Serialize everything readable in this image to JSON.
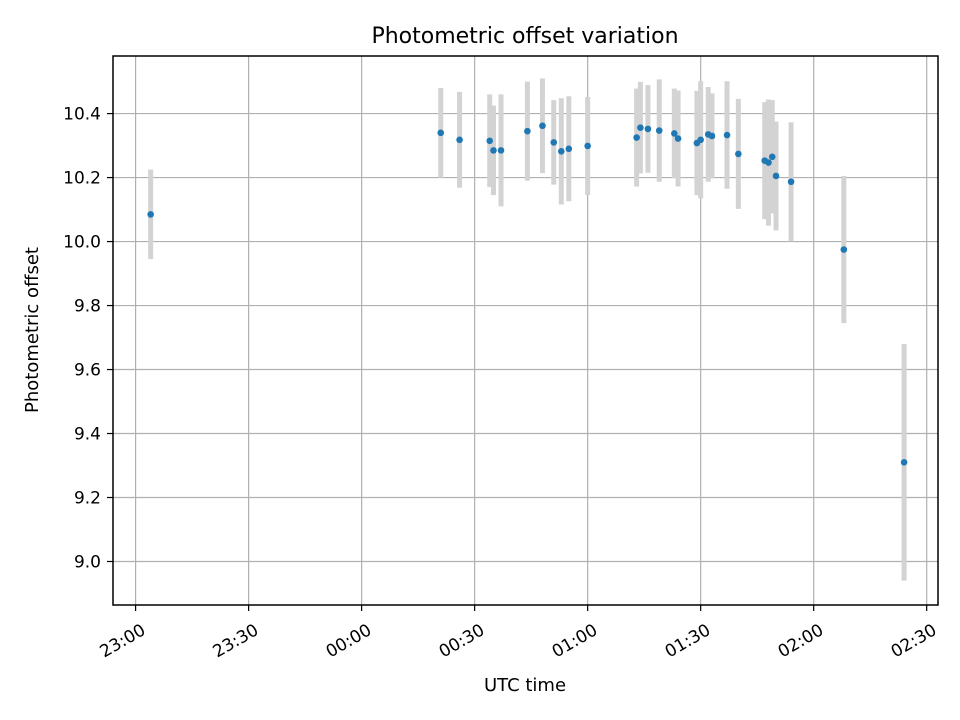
{
  "chart_data": {
    "type": "scatter",
    "title": "Photometric offset variation",
    "xlabel": "UTC time",
    "ylabel": "Photometric offset",
    "x_tick_labels": [
      "23:00",
      "23:30",
      "00:00",
      "00:30",
      "01:00",
      "01:30",
      "02:00",
      "02:30"
    ],
    "y_tick_labels": [
      "9.0",
      "9.2",
      "9.4",
      "9.6",
      "9.8",
      "10.0",
      "10.2",
      "10.4"
    ],
    "x_ticks_min": [
      0,
      30,
      60,
      90,
      120,
      150,
      180,
      210
    ],
    "y_ticks": [
      9.0,
      9.2,
      9.4,
      9.6,
      9.8,
      10.0,
      10.2,
      10.4
    ],
    "xlim_min": [
      -6,
      213
    ],
    "ylim": [
      8.864,
      10.58
    ],
    "x_axis_start_label": "23:00",
    "grid": true,
    "colors": {
      "point": "#1f77b4",
      "errorbar": "#d3d3d3",
      "grid": "#b0b0b0"
    },
    "points": [
      {
        "x": "23:04",
        "y": 10.085,
        "err": 0.14
      },
      {
        "x": "00:21",
        "y": 10.34,
        "err": 0.14
      },
      {
        "x": "00:26",
        "y": 10.318,
        "err": 0.15
      },
      {
        "x": "00:34",
        "y": 10.315,
        "err": 0.145
      },
      {
        "x": "00:35",
        "y": 10.285,
        "err": 0.14
      },
      {
        "x": "00:37",
        "y": 10.285,
        "err": 0.175
      },
      {
        "x": "00:44",
        "y": 10.345,
        "err": 0.155
      },
      {
        "x": "00:48",
        "y": 10.362,
        "err": 0.148
      },
      {
        "x": "00:51",
        "y": 10.31,
        "err": 0.132
      },
      {
        "x": "00:53",
        "y": 10.282,
        "err": 0.166
      },
      {
        "x": "00:55",
        "y": 10.29,
        "err": 0.164
      },
      {
        "x": "01:00",
        "y": 10.299,
        "err": 0.153
      },
      {
        "x": "01:13",
        "y": 10.325,
        "err": 0.153
      },
      {
        "x": "01:14",
        "y": 10.356,
        "err": 0.143
      },
      {
        "x": "01:16",
        "y": 10.352,
        "err": 0.137
      },
      {
        "x": "01:19",
        "y": 10.347,
        "err": 0.16
      },
      {
        "x": "01:23",
        "y": 10.338,
        "err": 0.14
      },
      {
        "x": "01:24",
        "y": 10.322,
        "err": 0.15
      },
      {
        "x": "01:29",
        "y": 10.308,
        "err": 0.163
      },
      {
        "x": "01:30",
        "y": 10.318,
        "err": 0.183
      },
      {
        "x": "01:32",
        "y": 10.335,
        "err": 0.148
      },
      {
        "x": "01:33",
        "y": 10.33,
        "err": 0.133
      },
      {
        "x": "01:37",
        "y": 10.333,
        "err": 0.168
      },
      {
        "x": "01:40",
        "y": 10.274,
        "err": 0.172
      },
      {
        "x": "01:47",
        "y": 10.253,
        "err": 0.183
      },
      {
        "x": "01:48",
        "y": 10.247,
        "err": 0.197
      },
      {
        "x": "01:49",
        "y": 10.265,
        "err": 0.177
      },
      {
        "x": "01:50",
        "y": 10.205,
        "err": 0.17
      },
      {
        "x": "01:54",
        "y": 10.187,
        "err": 0.186
      },
      {
        "x": "02:08",
        "y": 9.975,
        "err": 0.23
      },
      {
        "x": "02:24",
        "y": 9.31,
        "err": 0.37
      }
    ]
  }
}
